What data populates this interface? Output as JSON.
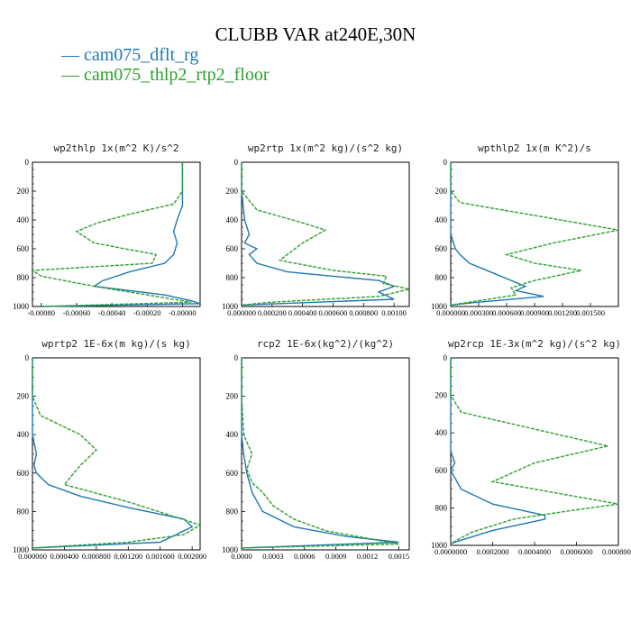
{
  "title": "CLUBB VAR at240E,30N",
  "legend": [
    {
      "name": "— cam075_dflt_rg",
      "color": "#1f77b4"
    },
    {
      "name": "— cam075_thlp2_rtp2_floor",
      "color": "#2ca02c"
    }
  ],
  "chart_data": [
    {
      "type": "line",
      "title": "wp2thlp  1x(m^2 K)/s^2",
      "ylim": [
        1000,
        0
      ],
      "yticks": [
        "0",
        "200",
        "400",
        "600",
        "800",
        "1000"
      ],
      "xlim": [
        -0.00085,
        0.0001
      ],
      "xticks": [
        {
          "v": -0.0008,
          "label": "-0.00080"
        },
        {
          "v": -0.0006,
          "label": "-0.00060"
        },
        {
          "v": -0.0004,
          "label": "-0.00040"
        },
        {
          "v": -0.0002,
          "label": "-0.00020"
        },
        {
          "v": 0.0,
          "label": "-0.00000"
        }
      ],
      "series": [
        {
          "color": "#1f77b4",
          "dash": false,
          "points": [
            [
              0.0,
              0
            ],
            [
              0.0,
              100
            ],
            [
              0.0,
              200
            ],
            [
              0.0,
              300
            ],
            [
              -3e-05,
              400
            ],
            [
              -5e-05,
              480
            ],
            [
              -3e-05,
              560
            ],
            [
              -5e-05,
              640
            ],
            [
              -0.0001,
              700
            ],
            [
              -0.0003,
              760
            ],
            [
              -0.00045,
              820
            ],
            [
              -0.0005,
              860
            ],
            [
              -0.0001,
              920
            ],
            [
              5e-05,
              960
            ],
            [
              0.0001,
              980
            ],
            [
              -0.0008,
              1000
            ]
          ]
        },
        {
          "color": "#2ca02c",
          "dash": true,
          "points": [
            [
              0.0,
              0
            ],
            [
              0.0,
              100
            ],
            [
              0.0,
              200
            ],
            [
              -5e-05,
              290
            ],
            [
              -0.0003,
              360
            ],
            [
              -0.00048,
              420
            ],
            [
              -0.0006,
              480
            ],
            [
              -0.0005,
              560
            ],
            [
              -0.00015,
              640
            ],
            [
              -0.00017,
              700
            ],
            [
              -0.00085,
              750
            ],
            [
              -0.0008,
              790
            ],
            [
              -0.0005,
              860
            ],
            [
              -0.0002,
              920
            ],
            [
              5e-05,
              970
            ],
            [
              -0.0008,
              1000
            ]
          ]
        }
      ]
    },
    {
      "type": "line",
      "title": "wp2rtp  1x(m^2 kg)/(s^2 kg)",
      "ylim": [
        1000,
        0
      ],
      "yticks": [
        "0",
        "200",
        "400",
        "600",
        "800",
        "1000"
      ],
      "xlim": [
        0,
        0.0011
      ],
      "xticks": [
        {
          "v": 0.0,
          "label": "0.000000"
        },
        {
          "v": 0.0002,
          "label": "0.000200"
        },
        {
          "v": 0.0004,
          "label": "0.000400"
        },
        {
          "v": 0.0006,
          "label": "0.000600"
        },
        {
          "v": 0.0008,
          "label": "0.000800"
        },
        {
          "v": 0.001,
          "label": "0.00100"
        }
      ],
      "series": [
        {
          "color": "#1f77b4",
          "dash": false,
          "points": [
            [
              0.0,
              0
            ],
            [
              0.0,
              200
            ],
            [
              2e-05,
              400
            ],
            [
              5e-05,
              500
            ],
            [
              2e-05,
              560
            ],
            [
              0.0001,
              600
            ],
            [
              5e-05,
              640
            ],
            [
              0.0001,
              700
            ],
            [
              0.0003,
              760
            ],
            [
              0.0006,
              790
            ],
            [
              0.0009,
              820
            ],
            [
              0.001,
              860
            ],
            [
              0.0009,
              900
            ],
            [
              0.001,
              950
            ],
            [
              0.0,
              990
            ]
          ]
        },
        {
          "color": "#2ca02c",
          "dash": true,
          "points": [
            [
              0.0,
              0
            ],
            [
              0.0,
              200
            ],
            [
              0.0001,
              330
            ],
            [
              0.0004,
              420
            ],
            [
              0.00055,
              470
            ],
            [
              0.0004,
              560
            ],
            [
              0.00025,
              680
            ],
            [
              0.0006,
              750
            ],
            [
              0.00095,
              790
            ],
            [
              0.00093,
              840
            ],
            [
              0.0011,
              880
            ],
            [
              0.0009,
              930
            ],
            [
              0.0002,
              970
            ],
            [
              0.0,
              990
            ]
          ]
        }
      ]
    },
    {
      "type": "line",
      "title": "wpthlp2  1x(m K^2)/s",
      "ylim": [
        1000,
        0
      ],
      "yticks": [
        "0",
        "200",
        "400",
        "600",
        "800",
        "1000"
      ],
      "xlim": [
        0,
        0.0018
      ],
      "xticks": [
        {
          "v": 0.0,
          "label": "0.000000"
        },
        {
          "v": 0.0003,
          "label": "0.000300"
        },
        {
          "v": 0.0006,
          "label": "0.000600"
        },
        {
          "v": 0.0009,
          "label": "0.000900"
        },
        {
          "v": 0.0012,
          "label": "0.001200"
        },
        {
          "v": 0.0015,
          "label": "0.001500"
        }
      ],
      "series": [
        {
          "color": "#1f77b4",
          "dash": false,
          "points": [
            [
              0.0,
              0
            ],
            [
              0.0,
              200
            ],
            [
              0.0,
              400
            ],
            [
              0.0,
              500
            ],
            [
              5e-05,
              600
            ],
            [
              0.0001,
              640
            ],
            [
              0.0002,
              700
            ],
            [
              0.0005,
              780
            ],
            [
              0.0008,
              860
            ],
            [
              0.0007,
              890
            ],
            [
              0.001,
              930
            ],
            [
              0.0003,
              970
            ],
            [
              0.0,
              990
            ]
          ]
        },
        {
          "color": "#2ca02c",
          "dash": true,
          "points": [
            [
              0.0,
              0
            ],
            [
              0.0,
              200
            ],
            [
              0.0001,
              280
            ],
            [
              0.001,
              380
            ],
            [
              0.0018,
              470
            ],
            [
              0.0011,
              560
            ],
            [
              0.0006,
              640
            ],
            [
              0.0009,
              700
            ],
            [
              0.0014,
              750
            ],
            [
              0.0009,
              820
            ],
            [
              0.00065,
              870
            ],
            [
              0.0007,
              920
            ],
            [
              0.0002,
              970
            ],
            [
              0.0,
              990
            ]
          ]
        }
      ]
    },
    {
      "type": "line",
      "title": "wprtp2  1E-6x(m kg)/(s kg)",
      "ylim": [
        1000,
        0
      ],
      "yticks": [
        "0",
        "200",
        "400",
        "600",
        "800",
        "1000"
      ],
      "xlim": [
        0,
        0.0021
      ],
      "xticks": [
        {
          "v": 0.0,
          "label": "0.000000"
        },
        {
          "v": 0.0004,
          "label": "0.000400"
        },
        {
          "v": 0.0008,
          "label": "0.000800"
        },
        {
          "v": 0.0012,
          "label": "0.001200"
        },
        {
          "v": 0.0016,
          "label": "0.001600"
        },
        {
          "v": 0.002,
          "label": "0.002000"
        }
      ],
      "series": [
        {
          "color": "#1f77b4",
          "dash": false,
          "points": [
            [
              0.0,
              0
            ],
            [
              0.0,
              200
            ],
            [
              0.0,
              400
            ],
            [
              5e-05,
              500
            ],
            [
              2e-05,
              560
            ],
            [
              5e-05,
              600
            ],
            [
              0.0002,
              660
            ],
            [
              0.0006,
              720
            ],
            [
              0.0012,
              780
            ],
            [
              0.0019,
              840
            ],
            [
              0.002,
              880
            ],
            [
              0.0018,
              920
            ],
            [
              0.0016,
              960
            ],
            [
              0.0,
              990
            ]
          ]
        },
        {
          "color": "#2ca02c",
          "dash": true,
          "points": [
            [
              0.0,
              0
            ],
            [
              0.0,
              200
            ],
            [
              0.0001,
              300
            ],
            [
              0.0006,
              400
            ],
            [
              0.0008,
              480
            ],
            [
              0.0006,
              560
            ],
            [
              0.0004,
              660
            ],
            [
              0.0012,
              750
            ],
            [
              0.0018,
              830
            ],
            [
              0.0021,
              870
            ],
            [
              0.0019,
              920
            ],
            [
              0.0012,
              960
            ],
            [
              0.0,
              990
            ]
          ]
        }
      ]
    },
    {
      "type": "line",
      "title": "rcp2  1E-6x(kg^2)/(kg^2)",
      "ylim": [
        1000,
        0
      ],
      "yticks": [
        "0",
        "200",
        "400",
        "600",
        "800",
        "1000"
      ],
      "xlim": [
        0,
        0.0016
      ],
      "xticks": [
        {
          "v": 0.0,
          "label": "0.0000"
        },
        {
          "v": 0.0003,
          "label": "0.0003"
        },
        {
          "v": 0.0006,
          "label": "0.0006"
        },
        {
          "v": 0.0009,
          "label": "0.0009"
        },
        {
          "v": 0.0012,
          "label": "0.0012"
        },
        {
          "v": 0.0015,
          "label": "0.0015"
        }
      ],
      "series": [
        {
          "color": "#1f77b4",
          "dash": false,
          "points": [
            [
              0.0,
              0
            ],
            [
              0.0,
              200
            ],
            [
              0.0,
              400
            ],
            [
              2e-05,
              500
            ],
            [
              5e-05,
              600
            ],
            [
              0.0001,
              700
            ],
            [
              0.0002,
              800
            ],
            [
              0.0005,
              880
            ],
            [
              0.001,
              930
            ],
            [
              0.0015,
              960
            ],
            [
              0.0,
              990
            ]
          ]
        },
        {
          "color": "#2ca02c",
          "dash": true,
          "points": [
            [
              0.0,
              0
            ],
            [
              0.0,
              200
            ],
            [
              2e-05,
              400
            ],
            [
              0.0001,
              500
            ],
            [
              5e-05,
              580
            ],
            [
              0.0001,
              650
            ],
            [
              0.0002,
              700
            ],
            [
              0.0003,
              770
            ],
            [
              0.0005,
              840
            ],
            [
              0.0008,
              900
            ],
            [
              0.0012,
              940
            ],
            [
              0.0015,
              970
            ],
            [
              0.0,
              990
            ]
          ]
        }
      ]
    },
    {
      "type": "line",
      "title": "wp2rcp  1E-3x(m^2 kg)/(s^2 kg)",
      "ylim": [
        1000,
        0
      ],
      "yticks": [
        "0",
        "200",
        "400",
        "600",
        "800",
        "1000"
      ],
      "xlim": [
        0,
        0.0008
      ],
      "xticks": [
        {
          "v": 0.0,
          "label": "0.0000000"
        },
        {
          "v": 0.0002,
          "label": "0.0002000"
        },
        {
          "v": 0.0004,
          "label": "0.0004000"
        },
        {
          "v": 0.0006,
          "label": "0.0006000"
        },
        {
          "v": 0.0008,
          "label": "0.0008000"
        }
      ],
      "series": [
        {
          "color": "#1f77b4",
          "dash": false,
          "points": [
            [
              0.0,
              0
            ],
            [
              0.0,
              200
            ],
            [
              0.0,
              400
            ],
            [
              0.0,
              500
            ],
            [
              2e-05,
              560
            ],
            [
              0.0,
              600
            ],
            [
              5e-05,
              700
            ],
            [
              0.0002,
              780
            ],
            [
              0.00045,
              840
            ],
            [
              0.00045,
              860
            ],
            [
              0.0002,
              920
            ],
            [
              0.0,
              990
            ]
          ]
        },
        {
          "color": "#2ca02c",
          "dash": true,
          "points": [
            [
              0.0,
              0
            ],
            [
              0.0,
              200
            ],
            [
              5e-05,
              290
            ],
            [
              0.0004,
              380
            ],
            [
              0.00075,
              470
            ],
            [
              0.0004,
              560
            ],
            [
              0.0002,
              660
            ],
            [
              0.0004,
              700
            ],
            [
              0.0008,
              780
            ],
            [
              0.0006,
              810
            ],
            [
              0.0003,
              860
            ],
            [
              0.0001,
              930
            ],
            [
              0.0,
              990
            ]
          ]
        }
      ]
    }
  ]
}
